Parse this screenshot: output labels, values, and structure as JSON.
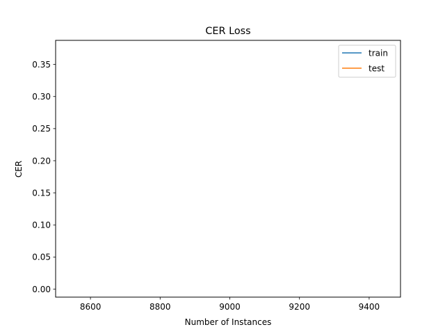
{
  "chart_data": {
    "type": "line",
    "title": "CER Loss",
    "xlabel": "Number of Instances",
    "ylabel": "CER",
    "xlim": [
      8500,
      9490
    ],
    "ylim": [
      -0.0125,
      0.3875
    ],
    "xticks": [
      8600,
      8800,
      9000,
      9200,
      9400
    ],
    "xtick_labels": [
      "8600",
      "8800",
      "9000",
      "9200",
      "9400"
    ],
    "yticks": [
      0.0,
      0.05,
      0.1,
      0.15,
      0.2,
      0.25,
      0.3,
      0.35
    ],
    "ytick_labels": [
      "0.00",
      "0.05",
      "0.10",
      "0.15",
      "0.20",
      "0.25",
      "0.30",
      "0.35"
    ],
    "grid": false,
    "legend_position": "top-right",
    "series": [
      {
        "name": "train",
        "color": "#1f77b4",
        "x": [],
        "y": []
      },
      {
        "name": "test",
        "color": "#ff7f0e",
        "x": [],
        "y": []
      }
    ]
  }
}
